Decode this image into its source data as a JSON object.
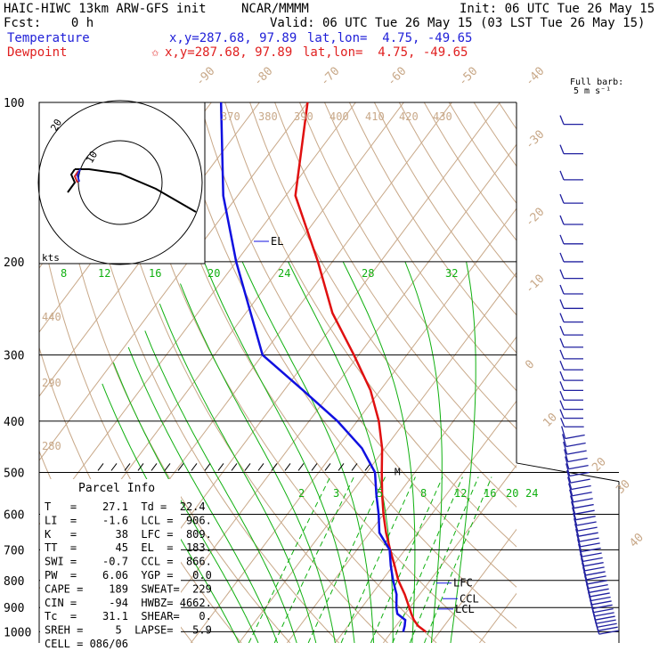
{
  "header": {
    "model": "HAIC-HIWC 13km ARW-GFS init",
    "org": "NCAR/MMMM",
    "init": "Init: 06 UTC Tue 26 May 15",
    "fcst": "Fcst:    0 h",
    "valid": "Valid: 06 UTC Tue 26 May 15 (03 LST Tue 26 May 15)",
    "temp_label": "Temperature",
    "dew_label": "Dewpoint",
    "temp_xy": "x,y=287.68, 97.89",
    "dew_xy": "x,y=287.68, 97.89",
    "temp_latlon": "lat,lon=  4.75, -49.65",
    "dew_latlon": "lat,lon=  4.75, -49.65",
    "star": "✩"
  },
  "colors": {
    "temperature": "#e01010",
    "dewpoint": "#1010e0",
    "isotherm": "#c8a888",
    "mixing_ratio": "#10b010",
    "barb": "#2020a0",
    "grid": "#000000"
  },
  "wind": {
    "full_barb_label": "Full barb:",
    "full_barb_value": "5 m s⁻¹"
  },
  "hodograph": {
    "units_label": "kts",
    "ring_labels": [
      "10",
      "20"
    ]
  },
  "parcel": {
    "title": "Parcel Info",
    "rows": [
      "T   =    27.1  Td =  22.4",
      "LI  =    -1.6  LCL =  906.",
      "K   =      38  LFC =  809.",
      "TT  =      45  EL  =  183.",
      "SWI =    -0.7  CCL =  866.",
      "PW  =    6.06  YGP =   0.0",
      "CAPE =    189  SWEAT=  229",
      "CIN =     -94  HWBZ= 4662.",
      "Tc  =    31.1  SHEAR=   0.",
      "SREH =     5  LAPSE=   5.9",
      "CELL = 086/06"
    ]
  },
  "levels": {
    "EL": "EL",
    "LFC": "LFC",
    "CCL": "CCL",
    "LCL": "LCL",
    "M": "M"
  },
  "chart_data": {
    "type": "line",
    "title": "",
    "ylabel": "",
    "xlabel": "",
    "y_scale": "log (pressure, hPa)",
    "pressure_levels": [
      100,
      200,
      300,
      400,
      500,
      600,
      700,
      800,
      900,
      1000
    ],
    "isotherm_labels": [
      "-90",
      "-80",
      "-70",
      "-60",
      "-50",
      "-40",
      "-30",
      "-20",
      "-10",
      "0",
      "10",
      "20",
      "30",
      "40"
    ],
    "theta_labels": [
      "370",
      "380",
      "390",
      "400",
      "410",
      "420",
      "430",
      "440",
      "290",
      "280",
      "270"
    ],
    "mixing_ratio_labels_upper": [
      "8",
      "12",
      "16",
      "20",
      "24",
      "28",
      "32"
    ],
    "mixing_ratio_labels_lower": [
      "2",
      "3",
      "5",
      "8",
      "12",
      "16",
      "20",
      "24"
    ],
    "series": [
      {
        "name": "Temperature",
        "pressure": [
          1000,
          975,
          950,
          925,
          900,
          850,
          800,
          750,
          700,
          650,
          600,
          550,
          500,
          450,
          400,
          350,
          300,
          250,
          200,
          150,
          100
        ],
        "values": [
          27.1,
          24.6,
          22.8,
          21.3,
          19.9,
          16.9,
          13.4,
          10.3,
          6.9,
          3.4,
          0.0,
          -3.4,
          -6.9,
          -10.6,
          -15.5,
          -22.0,
          -31.0,
          -42.0,
          -53.0,
          -68.0,
          -80.0
        ]
      },
      {
        "name": "Dewpoint",
        "pressure": [
          1000,
          975,
          950,
          925,
          900,
          850,
          800,
          750,
          700,
          650,
          600,
          550,
          500,
          450,
          400,
          350,
          300,
          250,
          200,
          150,
          100
        ],
        "values": [
          22.4,
          21.8,
          21.0,
          18.4,
          17.2,
          15.2,
          12.3,
          9.5,
          6.8,
          2.0,
          -1.0,
          -4.6,
          -8.3,
          -14.8,
          -24.1,
          -36.0,
          -50.0,
          -59.0,
          -70.0,
          -83.0,
          -98.0
        ]
      }
    ],
    "wind_profile": [
      {
        "p": 100,
        "speed_ms": 5
      },
      {
        "p": 150,
        "speed_ms": 10
      },
      {
        "p": 200,
        "speed_ms": 10
      },
      {
        "p": 250,
        "speed_ms": 10
      },
      {
        "p": 300,
        "speed_ms": 5
      },
      {
        "p": 400,
        "speed_ms": 5
      },
      {
        "p": 500,
        "speed_ms": 5
      },
      {
        "p": 600,
        "speed_ms": 5
      },
      {
        "p": 700,
        "speed_ms": 5
      },
      {
        "p": 800,
        "speed_ms": 5
      },
      {
        "p": 900,
        "speed_ms": 5
      },
      {
        "p": 1000,
        "speed_ms": 5
      }
    ]
  }
}
